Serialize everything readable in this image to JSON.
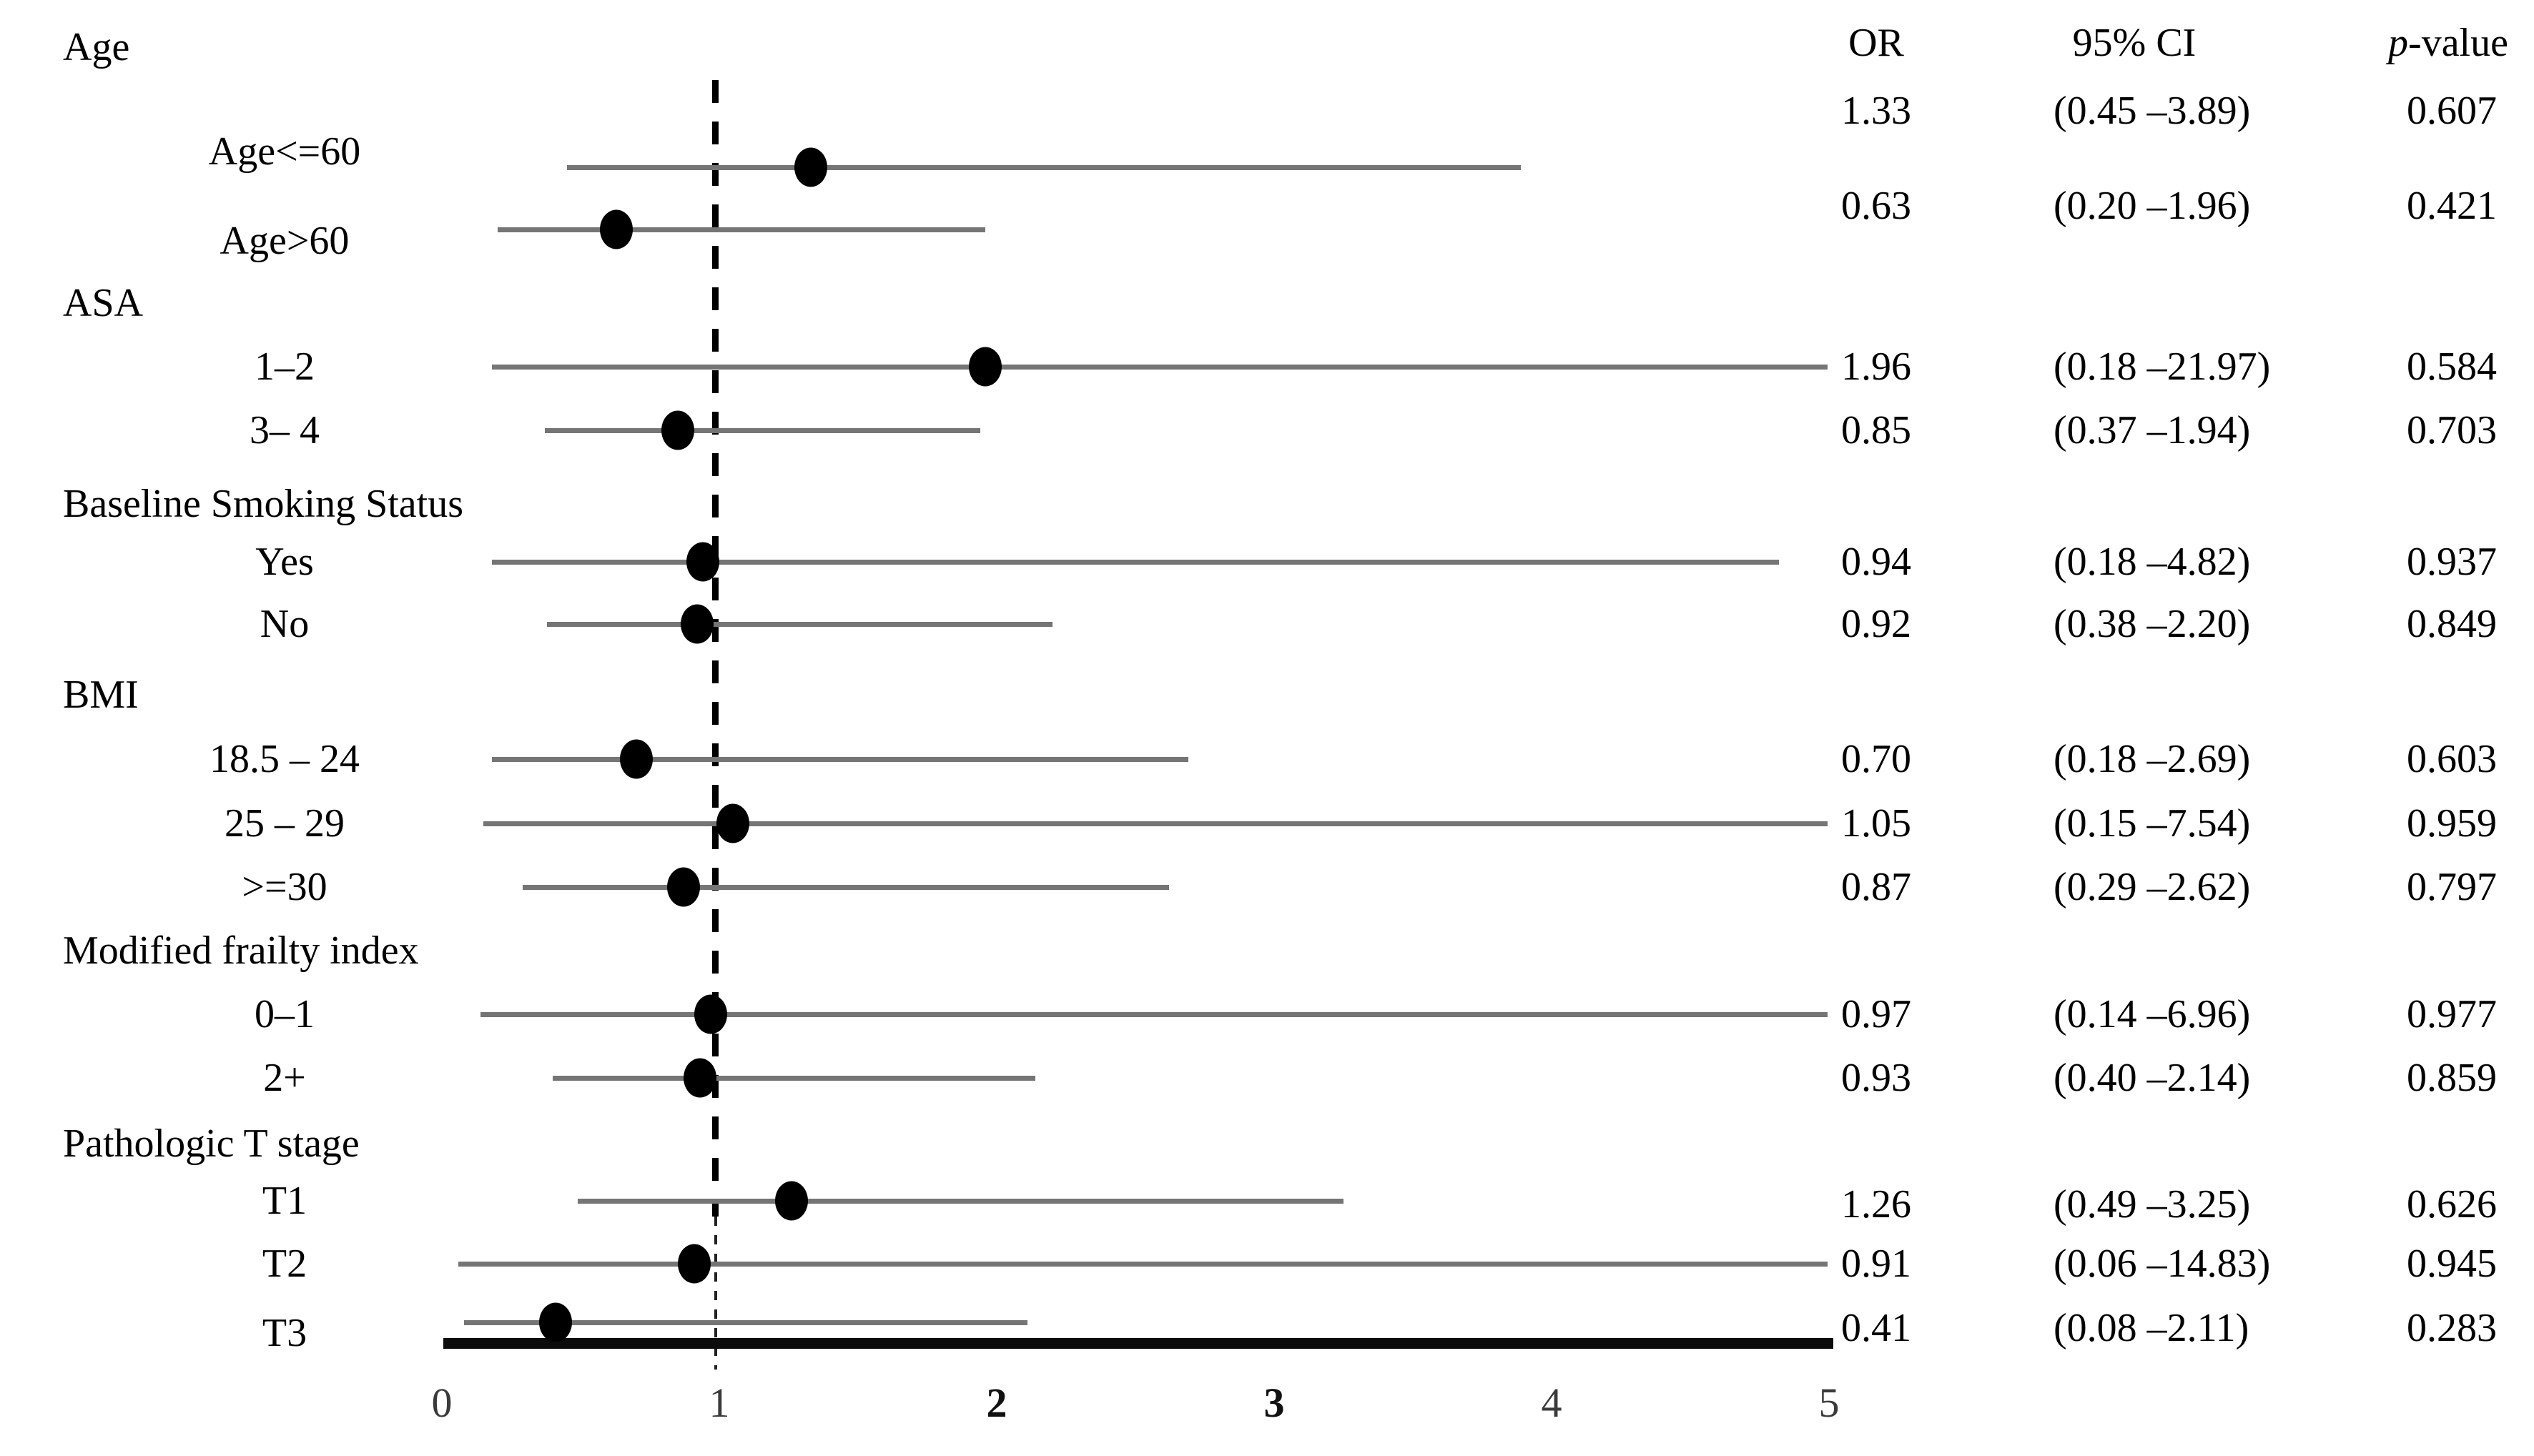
{
  "figure": {
    "columns": {
      "or": "OR",
      "ci": "95% CI",
      "p_italic": "p",
      "p_rest": "-value"
    },
    "axis": {
      "min": 0,
      "max": 5,
      "reference_value": 1,
      "ticks": [
        {
          "label": "0",
          "value": 0,
          "bold": false
        },
        {
          "label": "1",
          "value": 1,
          "bold": false
        },
        {
          "label": "2",
          "value": 2,
          "bold": true
        },
        {
          "label": "3",
          "value": 3,
          "bold": true
        },
        {
          "label": "4",
          "value": 4,
          "bold": false
        },
        {
          "label": "5",
          "value": 5,
          "bold": false
        }
      ]
    },
    "colors": {
      "text": "#000000",
      "ci_line": "#757575",
      "dot": "#000000",
      "axis_line": "#0c0c0c",
      "reference_line": "#000000"
    }
  },
  "chart_data": {
    "type": "forest",
    "x_axis_range": [
      0,
      5
    ],
    "reference_line": 1,
    "legend": "none",
    "columns": [
      "OR",
      "95% CI",
      "p-value"
    ],
    "groups": [
      {
        "label": "Age",
        "items": [
          {
            "label": "Age<=60",
            "or": 1.33,
            "ci_low": 0.45,
            "ci_high": 3.89,
            "or_text": "1.33",
            "ci_text": "(0.45 –3.89)",
            "p_text": "0.607"
          },
          {
            "label": "Age>60",
            "or": 0.63,
            "ci_low": 0.2,
            "ci_high": 1.96,
            "or_text": "0.63",
            "ci_text": "(0.20 –1.96)",
            "p_text": "0.421"
          }
        ]
      },
      {
        "label": "ASA",
        "items": [
          {
            "label": "1–2",
            "or": 1.96,
            "ci_low": 0.18,
            "ci_high": 21.97,
            "or_text": "1.96",
            "ci_text": "(0.18 –21.97)",
            "p_text": "0.584"
          },
          {
            "label": "3– 4",
            "or": 0.85,
            "ci_low": 0.37,
            "ci_high": 1.94,
            "or_text": "0.85",
            "ci_text": "(0.37 –1.94)",
            "p_text": "0.703"
          }
        ]
      },
      {
        "label": "Baseline Smoking Status",
        "items": [
          {
            "label": "Yes",
            "or": 0.94,
            "ci_low": 0.18,
            "ci_high": 4.82,
            "or_text": "0.94",
            "ci_text": "(0.18 –4.82)",
            "p_text": "0.937"
          },
          {
            "label": "No",
            "or": 0.92,
            "ci_low": 0.38,
            "ci_high": 2.2,
            "or_text": "0.92",
            "ci_text": "(0.38 –2.20)",
            "p_text": "0.849"
          }
        ]
      },
      {
        "label": "BMI",
        "items": [
          {
            "label": "18.5 – 24",
            "or": 0.7,
            "ci_low": 0.18,
            "ci_high": 2.69,
            "or_text": "0.70",
            "ci_text": "(0.18 –2.69)",
            "p_text": "0.603"
          },
          {
            "label": "25 – 29",
            "or": 1.05,
            "ci_low": 0.15,
            "ci_high": 7.54,
            "or_text": "1.05",
            "ci_text": "(0.15 –7.54)",
            "p_text": "0.959"
          },
          {
            "label": ">=30",
            "or": 0.87,
            "ci_low": 0.29,
            "ci_high": 2.62,
            "or_text": "0.87",
            "ci_text": "(0.29 –2.62)",
            "p_text": "0.797"
          }
        ]
      },
      {
        "label": "Modified frailty index",
        "items": [
          {
            "label": "0–1",
            "or": 0.97,
            "ci_low": 0.14,
            "ci_high": 6.96,
            "or_text": "0.97",
            "ci_text": "(0.14 –6.96)",
            "p_text": "0.977"
          },
          {
            "label": "2+",
            "or": 0.93,
            "ci_low": 0.4,
            "ci_high": 2.14,
            "or_text": "0.93",
            "ci_text": "(0.40 –2.14)",
            "p_text": "0.859"
          }
        ]
      },
      {
        "label": "Pathologic T stage",
        "items": [
          {
            "label": "T1",
            "or": 1.26,
            "ci_low": 0.49,
            "ci_high": 3.25,
            "or_text": "1.26",
            "ci_text": "(0.49 –3.25)",
            "p_text": "0.626"
          },
          {
            "label": "T2",
            "or": 0.91,
            "ci_low": 0.06,
            "ci_high": 14.83,
            "or_text": "0.91",
            "ci_text": "(0.06 –14.83)",
            "p_text": "0.945"
          },
          {
            "label": "T3",
            "or": 0.41,
            "ci_low": 0.08,
            "ci_high": 2.11,
            "or_text": "0.41",
            "ci_text": "(0.08 –2.11)",
            "p_text": "0.283"
          }
        ]
      }
    ]
  }
}
